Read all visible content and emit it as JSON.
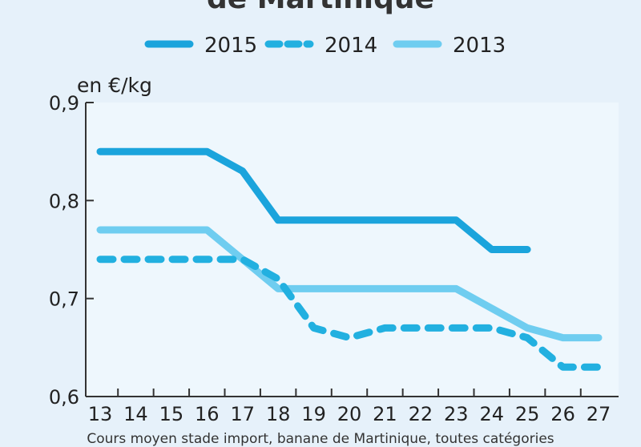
{
  "title": "de Martinique",
  "footnote": "Cours moyen stade import, banane de Martinique, toutes catégories",
  "chart_data": {
    "type": "line",
    "unit_label": "en €/kg",
    "x": [
      13,
      14,
      15,
      16,
      17,
      18,
      19,
      20,
      21,
      22,
      23,
      24,
      25,
      26,
      27
    ],
    "xlim": [
      13,
      27
    ],
    "ylim": [
      0.6,
      0.9
    ],
    "yticks": [
      "0,6",
      "0,7",
      "0,8",
      "0,9"
    ],
    "ytick_values": [
      0.6,
      0.7,
      0.8,
      0.9
    ],
    "legend_position": "top",
    "series": [
      {
        "name": "2015",
        "color": "#1ba4dc",
        "style": "solid",
        "values": [
          0.85,
          0.85,
          0.85,
          0.85,
          0.83,
          0.78,
          0.78,
          0.78,
          0.78,
          0.78,
          0.78,
          0.75,
          0.75,
          null,
          null
        ]
      },
      {
        "name": "2014",
        "color": "#22b0e0",
        "style": "dashed",
        "values": [
          0.74,
          0.74,
          0.74,
          0.74,
          0.74,
          0.72,
          0.67,
          0.66,
          0.67,
          0.67,
          0.67,
          0.67,
          0.66,
          0.63,
          0.63
        ]
      },
      {
        "name": "2013",
        "color": "#6fcdf0",
        "style": "solid",
        "values": [
          0.77,
          0.77,
          0.77,
          0.77,
          0.74,
          0.71,
          0.71,
          0.71,
          0.71,
          0.71,
          0.71,
          0.69,
          0.67,
          0.66,
          0.66
        ]
      }
    ]
  }
}
